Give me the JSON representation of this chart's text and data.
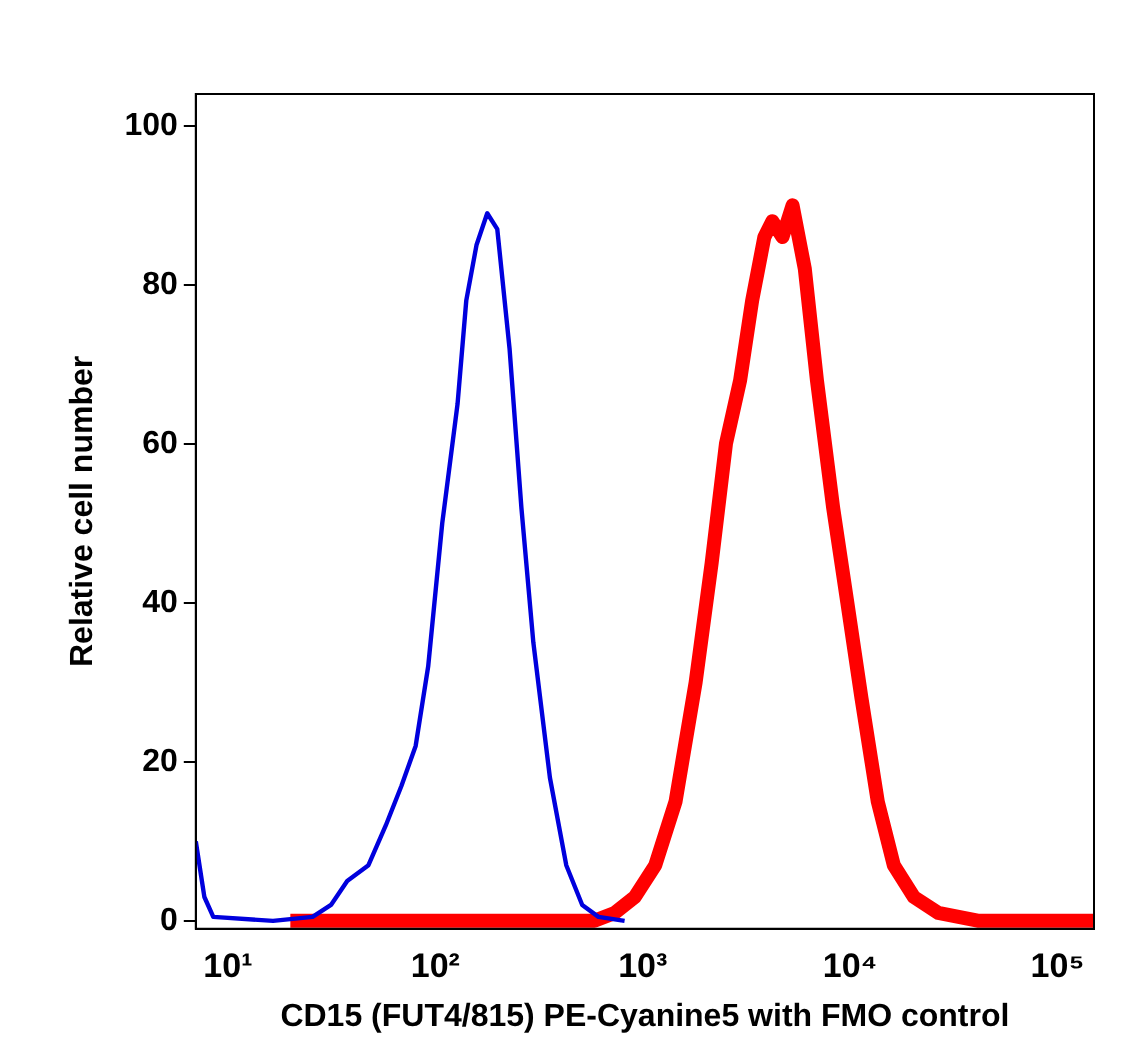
{
  "chart_data": {
    "type": "line",
    "xlabel": "CD15 (FUT4/815) PE-Cyanine5 with FMO control",
    "ylabel": "Relative cell number",
    "log": "x",
    "xlim": [
      7,
      150000
    ],
    "xticks": [
      {
        "value": 10,
        "label": "10¹"
      },
      {
        "value": 100,
        "label": "10²"
      },
      {
        "value": 1000,
        "label": "10³"
      },
      {
        "value": 10000,
        "label": "10⁴"
      },
      {
        "value": 100000,
        "label": "10⁵"
      }
    ],
    "ylim": [
      -1,
      104
    ],
    "yticks": [
      0,
      20,
      40,
      60,
      80,
      100
    ],
    "grid": false,
    "legend": false,
    "marker": "none",
    "line_style": "solid",
    "series": [
      {
        "color": "#0000dd",
        "x": [
          7,
          7.7,
          8.5,
          16.5,
          25.6,
          31.4,
          37.6,
          47.6,
          57.7,
          68.7,
          80.4,
          92.4,
          108,
          128,
          141,
          158,
          178,
          199,
          228,
          260,
          297,
          357,
          428,
          511,
          612,
          818
        ],
        "values": [
          10,
          3,
          0.5,
          0,
          0.5,
          2,
          5,
          7,
          12,
          17,
          22,
          32,
          50,
          65,
          78,
          85,
          89,
          87,
          72,
          52,
          35,
          18,
          7,
          2,
          0.5,
          0
        ]
      },
      {
        "color": "#ff0000",
        "x": [
          20,
          585,
          732,
          916,
          1150,
          1440,
          1800,
          2150,
          2520,
          2950,
          3370,
          3860,
          4220,
          4720,
          5280,
          6050,
          6920,
          8280,
          9700,
          11350,
          13600,
          16250,
          20300,
          26600,
          41800,
          150000
        ],
        "values": [
          0,
          0,
          1,
          3,
          7,
          15,
          30,
          45,
          60,
          68,
          78,
          86,
          88,
          86,
          90,
          82,
          68,
          52,
          40,
          28,
          15,
          7,
          3,
          1,
          0,
          0
        ]
      }
    ]
  }
}
